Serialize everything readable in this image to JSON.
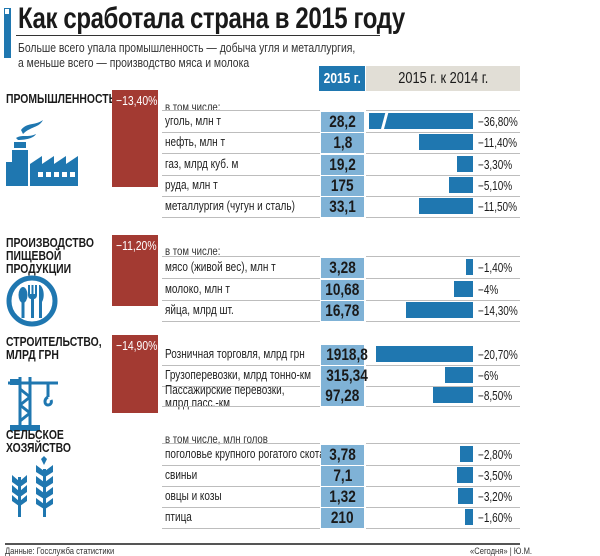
{
  "title": "Как сработала страна в 2015 году",
  "subtitle": [
    "Больше всего упала промышленность — добыча угля и металлургия,",
    "а меньше всего — производство мяса и молока"
  ],
  "header": {
    "col_value": "2015 г.",
    "col_change": "2015 г. к 2014 г."
  },
  "colors": {
    "accent": "#1f77b0",
    "value_cell": "#7fb2d6",
    "sector_box": "#a33a32",
    "header_gray": "#e1ded6"
  },
  "chart_data": {
    "type": "bar",
    "orientation": "horizontal",
    "xlabel": "",
    "ylabel": "",
    "note": "bar for coal is truncated (broken axis)",
    "sections": [
      {
        "name": "ПРОМЫШЛЕННОСТЬ",
        "total": "−13,40%",
        "icon": "factory-icon",
        "note": "в том числе:",
        "rows": [
          {
            "label": "уголь, млн т",
            "value": "28,2",
            "change": -36.8,
            "change_label": "−36,80%"
          },
          {
            "label": "нефть, млн т",
            "value": "1,8",
            "change": -11.4,
            "change_label": "−11,40%"
          },
          {
            "label": "газ, млрд куб. м",
            "value": "19,2",
            "change": -3.3,
            "change_label": "−3,30%"
          },
          {
            "label": "руда, млн т",
            "value": "175",
            "change": -5.1,
            "change_label": "−5,10%"
          },
          {
            "label": "металлургия (чугун и сталь)",
            "value": "33,1",
            "change": -11.5,
            "change_label": "−11,50%"
          }
        ]
      },
      {
        "name": "ПРОИЗВОДСТВО ПИЩЕВОЙ ПРОДУКЦИИ",
        "name_lines": [
          "ПРОИЗВОДСТВО",
          "ПИЩЕВОЙ",
          "ПРОДУКЦИИ"
        ],
        "total": "−11,20%",
        "icon": "cutlery-icon",
        "note": "в том числе:",
        "rows": [
          {
            "label": "мясо (живой вес), млн т",
            "value": "3,28",
            "change": -1.4,
            "change_label": "−1,40%"
          },
          {
            "label": "молоко, млн т",
            "value": "10,68",
            "change": -4,
            "change_label": "−4%"
          },
          {
            "label": "яйца, млрд шт.",
            "value": "16,78",
            "change": -14.3,
            "change_label": "−14,30%"
          }
        ]
      },
      {
        "name": "СТРОИТЕЛЬСТВО, МЛРД ГРН",
        "name_lines": [
          "СТРОИТЕЛЬСТВО,",
          "МЛРД ГРН"
        ],
        "total": "−14,90%",
        "icon": "crane-icon",
        "note": "",
        "rows": [
          {
            "label": "Розничная торговля, млрд грн",
            "value": "1918,8",
            "change": -20.7,
            "change_label": "−20,70%"
          },
          {
            "label": "Грузоперевозки, млрд тонно-км",
            "value": "315,34",
            "change": -6,
            "change_label": "−6%"
          },
          {
            "label": "Пассажирские перевозки, млрд пасс.-км",
            "label_lines": [
              "Пассажирские перевозки,",
              "млрд пасс.-км"
            ],
            "value": "97,28",
            "change": -8.5,
            "change_label": "−8,50%"
          }
        ]
      },
      {
        "name": "СЕЛЬСКОЕ ХОЗЯЙСТВО",
        "name_lines": [
          "СЕЛЬСКОЕ",
          "ХОЗЯЙСТВО"
        ],
        "total": "",
        "icon": "wheat-icon",
        "note": "в том числе, млн голов",
        "rows": [
          {
            "label": "поголовье крупного рогатого скота",
            "value": "3,78",
            "change": -2.8,
            "change_label": "−2,80%"
          },
          {
            "label": "свиньи",
            "value": "7,1",
            "change": -3.5,
            "change_label": "−3,50%"
          },
          {
            "label": "овцы и козы",
            "value": "1,32",
            "change": -3.2,
            "change_label": "−3,20%"
          },
          {
            "label": "птица",
            "value": "210",
            "change": -1.6,
            "change_label": "−1,60%"
          }
        ]
      }
    ]
  },
  "footer": {
    "source": "Данные: Госслужба статистики",
    "credit": "«Сегодня» | Ю.М."
  }
}
